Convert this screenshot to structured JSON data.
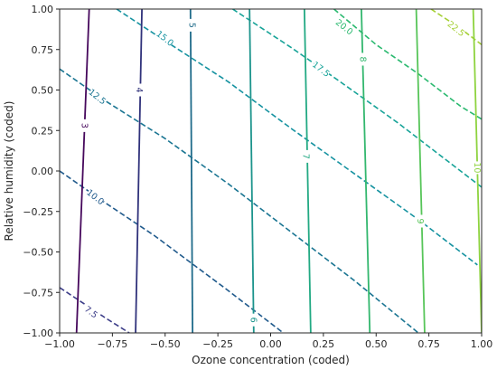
{
  "chart_data": {
    "type": "contour",
    "title": "",
    "xlabel": "Ozone concentration (coded)",
    "ylabel": "Relative humidity (coded)",
    "xlim": [
      -1.0,
      1.0
    ],
    "ylim": [
      -1.0,
      1.0
    ],
    "x_ticks": [
      "−1.00",
      "−0.75",
      "−0.50",
      "−0.25",
      "0.00",
      "0.25",
      "0.50",
      "0.75",
      "1.00"
    ],
    "y_ticks": [
      "−1.00",
      "−0.75",
      "−0.50",
      "−0.25",
      "0.00",
      "0.25",
      "0.50",
      "0.75",
      "1.00"
    ],
    "grid": false,
    "legend": "none",
    "solid_contours": {
      "style": "solid",
      "levels": [
        {
          "value": 3,
          "label": "3",
          "color": "#46085c",
          "x_top": -0.86,
          "x_bottom": -0.92
        },
        {
          "value": 4,
          "label": "4",
          "color": "#30327b",
          "x_top": -0.61,
          "x_bottom": -0.64
        },
        {
          "value": 5,
          "label": "5",
          "color": "#1f6b8a",
          "x_top": -0.38,
          "x_bottom": -0.37
        },
        {
          "value": 6,
          "label": "6",
          "color": "#1c948c",
          "x_top": -0.1,
          "x_bottom": -0.08
        },
        {
          "value": 7,
          "label": "7",
          "color": "#22a983",
          "x_top": 0.16,
          "x_bottom": 0.19
        },
        {
          "value": 8,
          "label": "8",
          "color": "#33b76e",
          "x_top": 0.43,
          "x_bottom": 0.47
        },
        {
          "value": 9,
          "label": "9",
          "color": "#57c559",
          "x_top": 0.69,
          "x_bottom": 0.73
        },
        {
          "value": 10,
          "label": "10",
          "color": "#8ed33f",
          "x_top": 0.96,
          "x_bottom": 1.0
        }
      ],
      "label_positions": [
        {
          "label": "3",
          "x": -0.88,
          "y": 0.28
        },
        {
          "label": "4",
          "x": -0.62,
          "y": 0.5
        },
        {
          "label": "5",
          "x": -0.37,
          "y": 0.9
        },
        {
          "label": "6",
          "x": -0.08,
          "y": -0.92
        },
        {
          "label": "7",
          "x": 0.17,
          "y": 0.09
        },
        {
          "label": "8",
          "x": 0.44,
          "y": 0.69
        },
        {
          "label": "9",
          "x": 0.71,
          "y": -0.31
        },
        {
          "label": "10",
          "x": 0.98,
          "y": 0.02
        }
      ]
    },
    "dashed_contours": {
      "style": "dashed",
      "levels": [
        {
          "value": 7.5,
          "label": "7.5",
          "color": "#3c3d88",
          "points": [
            [
              -1.0,
              -0.72
            ],
            [
              -0.78,
              -0.91
            ],
            [
              -0.67,
              -1.0
            ]
          ]
        },
        {
          "value": 10.0,
          "label": "10.0",
          "color": "#205a8c",
          "points": [
            [
              -1.0,
              0.0
            ],
            [
              -0.78,
              -0.2
            ],
            [
              -0.55,
              -0.4
            ],
            [
              -0.22,
              -0.72
            ],
            [
              0.06,
              -1.0
            ]
          ]
        },
        {
          "value": 12.5,
          "label": "12.5",
          "color": "#1a7592",
          "points": [
            [
              -1.0,
              0.63
            ],
            [
              -0.78,
              0.43
            ],
            [
              -0.5,
              0.2
            ],
            [
              -0.2,
              -0.08
            ],
            [
              0.1,
              -0.38
            ],
            [
              0.4,
              -0.68
            ],
            [
              0.7,
              -1.0
            ]
          ]
        },
        {
          "value": 15.0,
          "label": "15.0",
          "color": "#1592a0",
          "points": [
            [
              -0.73,
              1.0
            ],
            [
              -0.52,
              0.82
            ],
            [
              -0.2,
              0.55
            ],
            [
              0.1,
              0.26
            ],
            [
              0.4,
              -0.02
            ],
            [
              0.7,
              -0.3
            ],
            [
              0.98,
              -0.58
            ]
          ]
        },
        {
          "value": 17.5,
          "label": "17.5",
          "color": "#17a398",
          "points": [
            [
              -0.18,
              1.0
            ],
            [
              0.1,
              0.76
            ],
            [
              0.32,
              0.56
            ],
            [
              0.6,
              0.3
            ],
            [
              0.8,
              0.1
            ],
            [
              1.0,
              -0.1
            ]
          ]
        },
        {
          "value": 20.0,
          "label": "20.0",
          "color": "#2ab96f",
          "points": [
            [
              0.3,
              1.0
            ],
            [
              0.5,
              0.78
            ],
            [
              0.7,
              0.6
            ],
            [
              0.9,
              0.4
            ],
            [
              1.0,
              0.32
            ]
          ]
        },
        {
          "value": 22.5,
          "label": "22.5",
          "color": "#a4cf34",
          "points": [
            [
              0.76,
              1.0
            ],
            [
              0.9,
              0.88
            ],
            [
              1.0,
              0.78
            ]
          ]
        }
      ],
      "label_positions": [
        {
          "label": "7.5",
          "x": -0.85,
          "y": -0.87
        },
        {
          "label": "10.0",
          "x": -0.83,
          "y": -0.16
        },
        {
          "label": "12.5",
          "x": -0.82,
          "y": 0.46
        },
        {
          "label": "15.0",
          "x": -0.5,
          "y": 0.82
        },
        {
          "label": "17.5",
          "x": 0.24,
          "y": 0.63
        },
        {
          "label": "20.0",
          "x": 0.35,
          "y": 0.89
        },
        {
          "label": "22.5",
          "x": 0.88,
          "y": 0.88
        }
      ]
    }
  }
}
